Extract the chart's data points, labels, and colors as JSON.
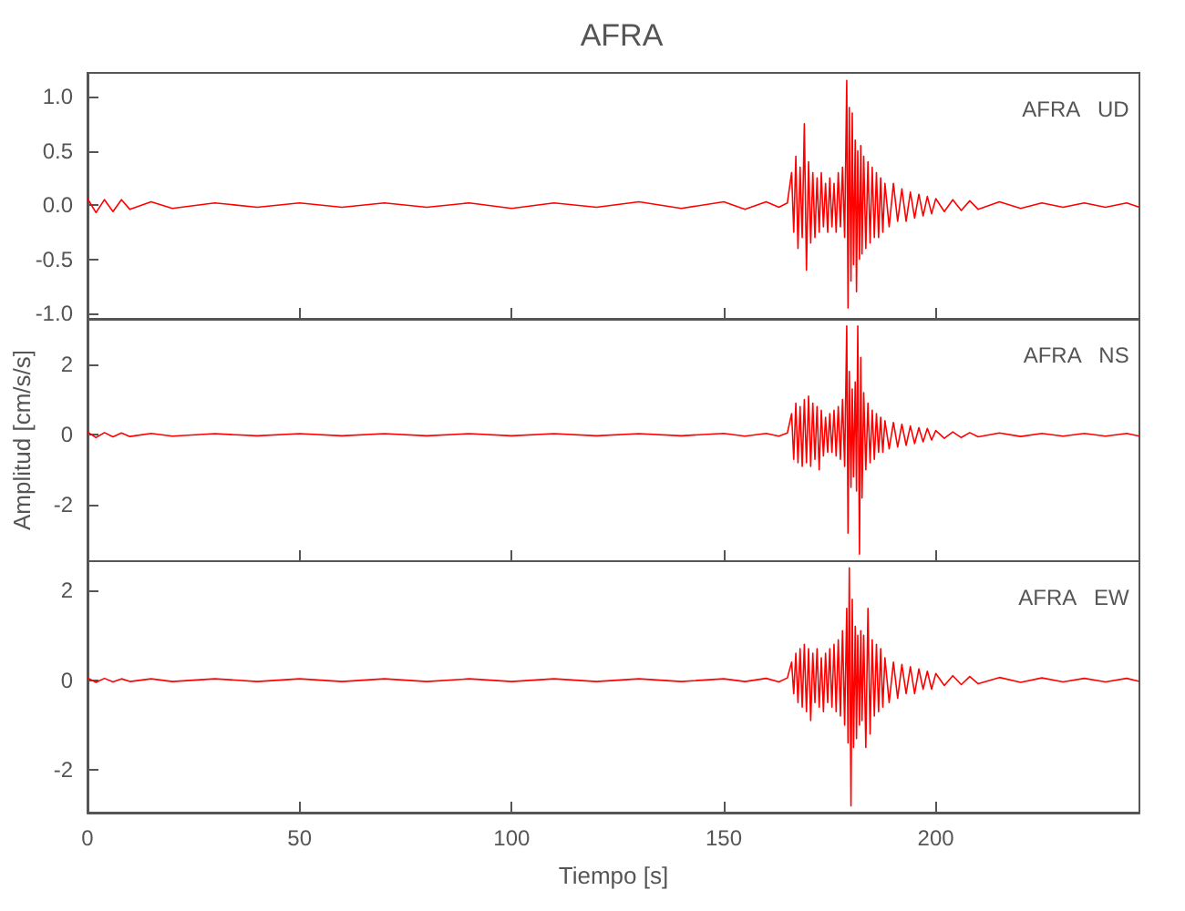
{
  "chart_data": [
    {
      "type": "line",
      "title": "AFRA",
      "annotations": [
        "AFRA   UD"
      ],
      "tick_labels": "y",
      "grid": false,
      "marker": "none",
      "line_style": "solid",
      "x": [
        0,
        2,
        4,
        6,
        8,
        10,
        15,
        20,
        30,
        40,
        50,
        60,
        70,
        80,
        90,
        100,
        110,
        120,
        130,
        140,
        150,
        155,
        160,
        163,
        165,
        166,
        166.5,
        167,
        167.5,
        168,
        168.5,
        169,
        169.5,
        170,
        170.5,
        171,
        171.5,
        172,
        172.5,
        173,
        173.5,
        174,
        174.5,
        175,
        175.5,
        176,
        176.5,
        177,
        177.5,
        178,
        178.5,
        179,
        179.3,
        179.6,
        180,
        180.3,
        180.6,
        181,
        181.3,
        181.6,
        182,
        182.3,
        182.6,
        183,
        183.5,
        184,
        184.5,
        185,
        185.5,
        186,
        186.5,
        187,
        187.5,
        188,
        189,
        190,
        191,
        192,
        193,
        194,
        195,
        196,
        197,
        198,
        199,
        200,
        202,
        204,
        206,
        208,
        210,
        215,
        220,
        225,
        230,
        235,
        240,
        245,
        248
      ],
      "xlim": [
        0,
        248
      ],
      "xticks": [
        0,
        50,
        100,
        150,
        200
      ],
      "ylim": [
        -1.05,
        1.22
      ],
      "yticks": [
        {
          "value": -1,
          "label": "-1.0"
        },
        {
          "value": -0.5,
          "label": "-0.5"
        },
        {
          "value": 0,
          "label": "0.0"
        },
        {
          "value": 0.5,
          "label": "0.5"
        },
        {
          "value": 1,
          "label": "1.0"
        }
      ],
      "series": [
        {
          "color": "#ff0000",
          "values": [
            0.06,
            -0.07,
            0.05,
            -0.06,
            0.05,
            -0.04,
            0.03,
            -0.03,
            0.02,
            -0.02,
            0.02,
            -0.02,
            0.02,
            -0.02,
            0.02,
            -0.03,
            0.02,
            -0.02,
            0.03,
            -0.03,
            0.03,
            -0.04,
            0.03,
            -0.02,
            0.02,
            0.3,
            -0.25,
            0.45,
            -0.4,
            0.35,
            -0.3,
            0.75,
            -0.6,
            0.4,
            -0.35,
            0.3,
            -0.3,
            0.25,
            -0.25,
            0.3,
            -0.2,
            0.2,
            -0.25,
            0.25,
            -0.2,
            0.2,
            -0.25,
            0.3,
            -0.2,
            0.35,
            -0.3,
            1.15,
            -0.95,
            0.9,
            -0.7,
            0.85,
            -0.55,
            0.6,
            -0.8,
            0.5,
            -0.5,
            0.55,
            -0.45,
            0.45,
            -0.4,
            0.4,
            -0.35,
            0.35,
            -0.3,
            0.3,
            -0.3,
            0.25,
            -0.25,
            0.2,
            -0.2,
            0.2,
            -0.15,
            0.15,
            -0.15,
            0.12,
            -0.12,
            0.1,
            -0.1,
            0.08,
            -0.08,
            0.06,
            -0.06,
            0.05,
            -0.05,
            0.04,
            -0.04,
            0.03,
            -0.03,
            0.02,
            -0.02,
            0.02,
            -0.02,
            0.02,
            -0.02
          ]
        }
      ]
    },
    {
      "type": "line",
      "ylabel": "Amplitud [cm/s/s]",
      "annotations": [
        "AFRA   NS"
      ],
      "tick_labels": "y",
      "grid": false,
      "marker": "none",
      "line_style": "solid",
      "x": [
        0,
        2,
        4,
        6,
        8,
        10,
        15,
        20,
        30,
        40,
        50,
        60,
        70,
        80,
        90,
        100,
        110,
        120,
        130,
        140,
        150,
        155,
        160,
        163,
        165,
        166,
        166.5,
        167,
        167.5,
        168,
        168.5,
        169,
        169.5,
        170,
        170.5,
        171,
        171.5,
        172,
        172.5,
        173,
        173.5,
        174,
        174.5,
        175,
        175.5,
        176,
        176.5,
        177,
        177.5,
        178,
        178.5,
        179,
        179.3,
        179.6,
        180,
        180.3,
        180.6,
        181,
        181.3,
        181.6,
        182,
        182.3,
        182.6,
        183,
        183.5,
        184,
        184.5,
        185,
        185.5,
        186,
        186.5,
        187,
        187.5,
        188,
        189,
        190,
        191,
        192,
        193,
        194,
        195,
        196,
        197,
        198,
        199,
        200,
        202,
        204,
        206,
        208,
        210,
        215,
        220,
        225,
        230,
        235,
        240,
        245,
        248
      ],
      "xlim": [
        0,
        248
      ],
      "xticks": [
        0,
        50,
        100,
        150,
        200
      ],
      "ylim": [
        -3.6,
        3.3
      ],
      "yticks": [
        -2,
        0,
        2
      ],
      "series": [
        {
          "color": "#ff0000",
          "values": [
            0.08,
            -0.08,
            0.06,
            -0.06,
            0.05,
            -0.05,
            0.04,
            -0.04,
            0.03,
            -0.03,
            0.03,
            -0.03,
            0.03,
            -0.03,
            0.03,
            -0.03,
            0.03,
            -0.03,
            0.03,
            -0.03,
            0.04,
            -0.04,
            0.04,
            -0.04,
            0.05,
            0.6,
            -0.7,
            0.9,
            -0.8,
            0.8,
            -0.9,
            1.0,
            -0.8,
            1.1,
            -0.9,
            0.9,
            -0.7,
            0.8,
            -1.0,
            0.7,
            -0.6,
            0.5,
            -0.5,
            0.6,
            -0.5,
            0.7,
            -0.6,
            0.8,
            -0.7,
            1.0,
            -0.9,
            3.1,
            -2.8,
            1.8,
            -1.5,
            1.3,
            -1.2,
            1.5,
            -1.6,
            3.1,
            -3.4,
            2.2,
            -1.8,
            1.2,
            -1.0,
            0.9,
            -0.8,
            0.7,
            -0.7,
            0.6,
            -0.5,
            0.5,
            -0.5,
            0.4,
            -0.4,
            0.35,
            -0.35,
            0.3,
            -0.3,
            0.25,
            -0.25,
            0.2,
            -0.2,
            0.18,
            -0.15,
            0.12,
            -0.1,
            0.08,
            -0.08,
            0.06,
            -0.06,
            0.05,
            -0.05,
            0.04,
            -0.04,
            0.04,
            -0.04,
            0.04,
            -0.04
          ]
        }
      ]
    },
    {
      "type": "line",
      "xlabel": "Tiempo [s]",
      "annotations": [
        "AFRA   EW"
      ],
      "grid": false,
      "marker": "none",
      "line_style": "solid",
      "x": [
        0,
        2,
        4,
        6,
        8,
        10,
        15,
        20,
        30,
        40,
        50,
        60,
        70,
        80,
        90,
        100,
        110,
        120,
        130,
        140,
        150,
        155,
        160,
        163,
        165,
        166,
        166.5,
        167,
        167.5,
        168,
        168.5,
        169,
        169.5,
        170,
        170.5,
        171,
        171.5,
        172,
        172.5,
        173,
        173.5,
        174,
        174.5,
        175,
        175.5,
        176,
        176.5,
        177,
        177.5,
        178,
        178.5,
        179,
        179.3,
        179.6,
        180,
        180.3,
        180.6,
        181,
        181.3,
        181.6,
        182,
        182.3,
        182.6,
        183,
        183.5,
        184,
        184.5,
        185,
        185.5,
        186,
        186.5,
        187,
        187.5,
        188,
        189,
        190,
        191,
        192,
        193,
        194,
        195,
        196,
        197,
        198,
        199,
        200,
        202,
        204,
        206,
        208,
        210,
        215,
        220,
        225,
        230,
        235,
        240,
        245,
        248
      ],
      "xlim": [
        0,
        248
      ],
      "xticks": [
        0,
        50,
        100,
        150,
        200
      ],
      "ylim": [
        -2.95,
        2.65
      ],
      "yticks": [
        -2,
        0,
        2
      ],
      "series": [
        {
          "color": "#ff0000",
          "values": [
            0.05,
            -0.05,
            0.04,
            -0.04,
            0.03,
            -0.03,
            0.03,
            -0.03,
            0.03,
            -0.03,
            0.03,
            -0.03,
            0.03,
            -0.03,
            0.03,
            -0.03,
            0.03,
            -0.03,
            0.03,
            -0.03,
            0.03,
            -0.03,
            0.04,
            -0.04,
            0.05,
            0.4,
            -0.3,
            0.6,
            -0.5,
            0.7,
            -0.6,
            0.8,
            -0.7,
            0.7,
            -0.9,
            0.6,
            -0.5,
            0.7,
            -0.6,
            0.5,
            -0.7,
            0.6,
            -0.5,
            0.7,
            -0.6,
            0.8,
            -0.7,
            0.9,
            -0.8,
            1.1,
            -1.0,
            1.6,
            -1.4,
            2.5,
            -2.8,
            1.8,
            -1.5,
            1.2,
            -1.3,
            1.0,
            -1.0,
            1.1,
            -0.9,
            1.0,
            -1.5,
            1.6,
            -1.2,
            0.9,
            -0.8,
            0.8,
            -0.7,
            0.7,
            -0.6,
            0.5,
            -0.5,
            0.4,
            -0.4,
            0.35,
            -0.3,
            0.3,
            -0.3,
            0.25,
            -0.2,
            0.2,
            -0.2,
            0.15,
            -0.12,
            0.1,
            -0.1,
            0.08,
            -0.08,
            0.06,
            -0.05,
            0.05,
            -0.04,
            0.04,
            -0.04,
            0.04,
            -0.03
          ]
        }
      ]
    }
  ]
}
